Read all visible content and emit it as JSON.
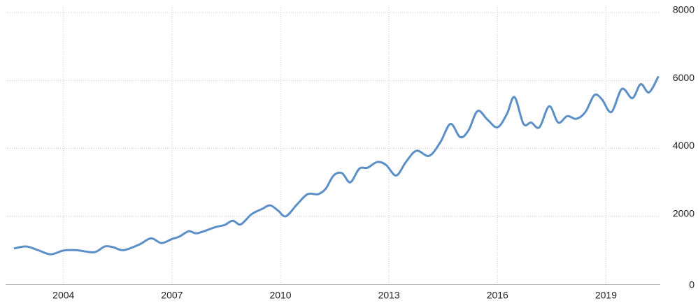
{
  "chart_data": {
    "type": "line",
    "x": [
      2002.63,
      2002.97,
      2003.3,
      2003.65,
      2004.0,
      2004.37,
      2004.85,
      2005.14,
      2005.37,
      2005.66,
      2006.1,
      2006.42,
      2006.71,
      2007.0,
      2007.2,
      2007.47,
      2007.7,
      2008.2,
      2008.45,
      2008.68,
      2008.9,
      2009.2,
      2009.5,
      2009.72,
      2009.94,
      2010.15,
      2010.46,
      2010.75,
      2011.04,
      2011.25,
      2011.47,
      2011.7,
      2011.93,
      2012.18,
      2012.41,
      2012.68,
      2012.92,
      2013.2,
      2013.47,
      2013.76,
      2014.11,
      2014.42,
      2014.7,
      2014.97,
      2015.2,
      2015.45,
      2015.72,
      2016.0,
      2016.26,
      2016.47,
      2016.72,
      2016.93,
      2017.16,
      2017.43,
      2017.68,
      2017.93,
      2018.18,
      2018.43,
      2018.68,
      2018.89,
      2019.15,
      2019.44,
      2019.73,
      2019.96,
      2020.19,
      2020.45
    ],
    "series": [
      {
        "color": "#5b8fc7",
        "values": [
          1050,
          1110,
          1000,
          880,
          990,
          1000,
          940,
          1110,
          1090,
          1000,
          1170,
          1350,
          1210,
          1330,
          1400,
          1560,
          1500,
          1680,
          1740,
          1870,
          1760,
          2060,
          2220,
          2320,
          2160,
          2000,
          2350,
          2650,
          2650,
          2810,
          3200,
          3270,
          3000,
          3400,
          3430,
          3600,
          3510,
          3200,
          3600,
          3930,
          3780,
          4180,
          4720,
          4330,
          4530,
          5100,
          4850,
          4620,
          5010,
          5510,
          4720,
          4760,
          4620,
          5240,
          4760,
          4950,
          4870,
          5070,
          5570,
          5440,
          5070,
          5750,
          5480,
          5890,
          5650,
          6120
        ]
      }
    ],
    "xlim": [
      2002.4,
      2020.5
    ],
    "xticks": [
      2004,
      2007,
      2010,
      2013,
      2016,
      2019
    ],
    "ylim": [
      0,
      8000
    ],
    "yticks": [
      0,
      2000,
      4000,
      6000,
      8000
    ],
    "grid": true
  }
}
